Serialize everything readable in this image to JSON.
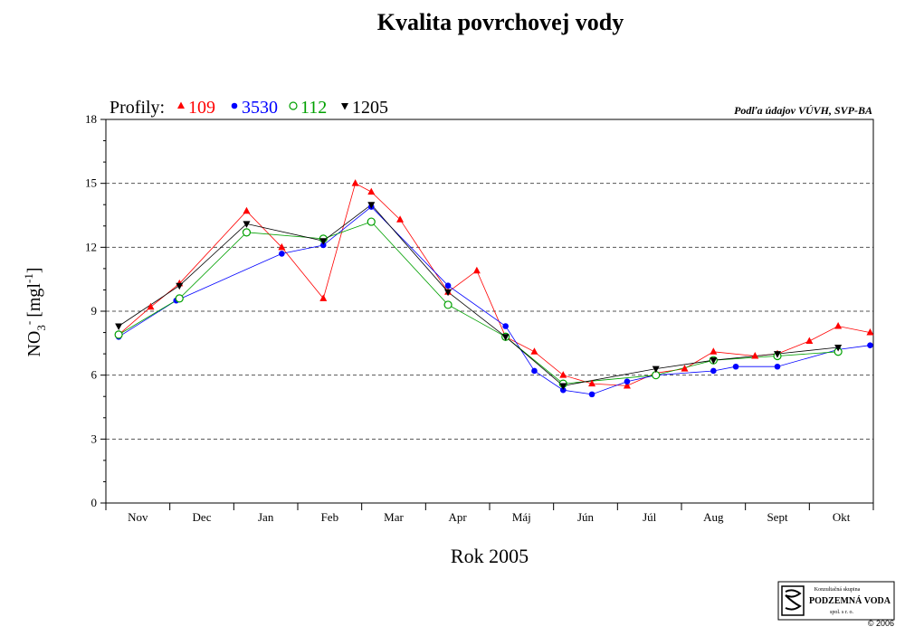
{
  "chart_data": {
    "type": "line",
    "title": "Kvalita povrchovej vody",
    "xlabel": "Rok 2005",
    "ylabel_main": "NO",
    "ylabel_sub": "3",
    "ylabel_sup1": "-",
    "ylabel_unit": "[mgl",
    "ylabel_sup2": "-1",
    "ylabel_end": "]",
    "source": "Podľa údajov VÚVH, SVP-BA",
    "legend_label": "Profily:",
    "ylim": [
      0,
      18
    ],
    "yticks": [
      0,
      3,
      6,
      9,
      12,
      15,
      18
    ],
    "grid": "horizontal dashed",
    "legend_position": "top-left",
    "x_range": [
      0,
      12
    ],
    "categories": [
      "Nov",
      "Dec",
      "Jan",
      "Feb",
      "Mar",
      "Apr",
      "Máj",
      "Jún",
      "Júl",
      "Aug",
      "Sept",
      "Okt"
    ],
    "series": [
      {
        "name": "109",
        "color": "#ff0000",
        "marker": "triangle-up",
        "points": [
          [
            0.2,
            7.9
          ],
          [
            0.7,
            9.2
          ],
          [
            1.15,
            10.3
          ],
          [
            2.2,
            13.7
          ],
          [
            2.75,
            12.0
          ],
          [
            3.4,
            9.6
          ],
          [
            3.9,
            15.0
          ],
          [
            4.15,
            14.6
          ],
          [
            4.6,
            13.3
          ],
          [
            5.35,
            9.9
          ],
          [
            5.8,
            10.9
          ],
          [
            6.25,
            7.8
          ],
          [
            6.7,
            7.1
          ],
          [
            7.15,
            6.0
          ],
          [
            7.6,
            5.6
          ],
          [
            8.15,
            5.5
          ],
          [
            8.6,
            6.1
          ],
          [
            9.05,
            6.3
          ],
          [
            9.5,
            7.1
          ],
          [
            10.15,
            6.9
          ],
          [
            10.5,
            7.0
          ],
          [
            11.0,
            7.6
          ],
          [
            11.45,
            8.3
          ],
          [
            11.95,
            8.0
          ]
        ]
      },
      {
        "name": "3530",
        "color": "#0000ff",
        "marker": "circle",
        "points": [
          [
            0.2,
            7.8
          ],
          [
            1.1,
            9.5
          ],
          [
            2.75,
            11.7
          ],
          [
            3.4,
            12.1
          ],
          [
            4.15,
            13.9
          ],
          [
            5.35,
            10.2
          ],
          [
            6.25,
            8.3
          ],
          [
            6.7,
            6.2
          ],
          [
            7.15,
            5.3
          ],
          [
            7.6,
            5.1
          ],
          [
            8.15,
            5.7
          ],
          [
            8.6,
            6.0
          ],
          [
            9.5,
            6.2
          ],
          [
            9.85,
            6.4
          ],
          [
            10.5,
            6.4
          ],
          [
            11.45,
            7.2
          ],
          [
            11.95,
            7.4
          ]
        ]
      },
      {
        "name": "112",
        "color": "#00a000",
        "marker": "circle-open",
        "points": [
          [
            0.2,
            7.9
          ],
          [
            1.15,
            9.6
          ],
          [
            2.2,
            12.7
          ],
          [
            3.4,
            12.4
          ],
          [
            4.15,
            13.2
          ],
          [
            5.35,
            9.3
          ],
          [
            6.25,
            7.8
          ],
          [
            7.15,
            5.6
          ],
          [
            8.6,
            6.0
          ],
          [
            9.5,
            6.7
          ],
          [
            10.5,
            6.9
          ],
          [
            11.45,
            7.1
          ]
        ]
      },
      {
        "name": "1205",
        "color": "#000000",
        "marker": "triangle-down",
        "points": [
          [
            0.2,
            8.3
          ],
          [
            1.15,
            10.2
          ],
          [
            2.2,
            13.1
          ],
          [
            3.4,
            12.3
          ],
          [
            4.15,
            14.0
          ],
          [
            5.35,
            9.9
          ],
          [
            6.25,
            7.8
          ],
          [
            7.15,
            5.5
          ],
          [
            8.6,
            6.3
          ],
          [
            9.5,
            6.7
          ],
          [
            10.5,
            7.0
          ],
          [
            11.45,
            7.3
          ]
        ]
      }
    ]
  },
  "logo": {
    "line1": "Konzultačná skupina",
    "line2": "PODZEMNÁ VODA",
    "line3": "spol. s r. o.",
    "copyright": "© 2006"
  }
}
